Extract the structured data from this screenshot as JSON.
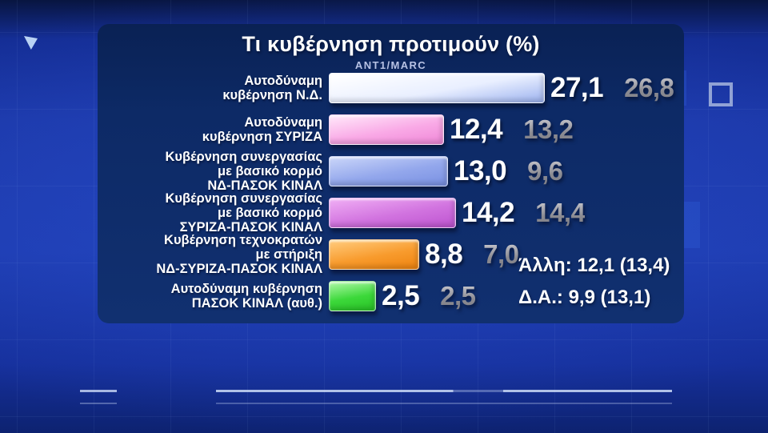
{
  "chart_data": {
    "type": "bar",
    "orientation": "horizontal",
    "title": "Τι κυβέρνηση προτιμούν (%)",
    "source": "ΑΝΤ1/MARC",
    "decimal_style": "comma",
    "xlim": [
      0,
      30
    ],
    "grid": false,
    "legend": "none",
    "categories": [
      "Αυτοδύναμη κυβέρνηση Ν.Δ.",
      "Αυτοδύναμη κυβέρνηση ΣΥΡΙΖΑ",
      "Κυβέρνηση συνεργασίας με βασικό κορμό ΝΔ-ΠΑΣΟΚ ΚΙΝΑΛ",
      "Κυβέρνηση συνεργασίας με βασικό κορμό ΣΥΡΙΖΑ-ΠΑΣΟΚ ΚΙΝΑΛ",
      "Κυβέρνηση τεχνοκρατών με στήριξη ΝΔ-ΣΥΡΙΖΑ-ΠΑΣΟΚ ΚΙΝΑΛ",
      "Αυτοδύναμη κυβέρνηση ΠΑΣΟΚ ΚΙΝΑΛ (αυθ.)"
    ],
    "series": [
      {
        "name": "current",
        "values": [
          27.1,
          12.4,
          13.0,
          14.2,
          8.8,
          2.5
        ]
      },
      {
        "name": "previous",
        "values": [
          26.8,
          13.2,
          9.6,
          14.4,
          7.0,
          2.5
        ]
      }
    ],
    "bars": [
      {
        "label_lines": [
          "Αυτοδύναμη",
          "κυβέρνηση Ν.Δ."
        ],
        "value": 27.1,
        "value_display": "27,1",
        "previous_display": "26,8",
        "colors": [
          "#ffffff",
          "#e9efff",
          "#9cb2ef"
        ]
      },
      {
        "label_lines": [
          "Αυτοδύναμη",
          "κυβέρνηση ΣΥΡΙΖΑ"
        ],
        "value": 12.4,
        "value_display": "12,4",
        "previous_display": "13,2",
        "colors": [
          "#ffe4f9",
          "#f9a9e6",
          "#ef87d7"
        ]
      },
      {
        "label_lines": [
          "Κυβέρνηση συνεργασίας",
          "με βασικό κορμό",
          "ΝΔ-ΠΑΣΟΚ ΚΙΝΑΛ"
        ],
        "value": 13.0,
        "value_display": "13,0",
        "previous_display": "9,6",
        "colors": [
          "#c6d2f8",
          "#93a7ec",
          "#7990e2"
        ]
      },
      {
        "label_lines": [
          "Κυβέρνηση συνεργασίας",
          "με βασικό κορμό",
          "ΣΥΡΙΖΑ-ΠΑΣΟΚ ΚΙΝΑΛ"
        ],
        "value": 14.2,
        "value_display": "14,2",
        "previous_display": "14,4",
        "colors": [
          "#eeaaf3",
          "#d173df",
          "#bd53d0"
        ]
      },
      {
        "label_lines": [
          "Κυβέρνηση τεχνοκρατών",
          "με στήριξη",
          "ΝΔ-ΣΥΡΙΖΑ-ΠΑΣΟΚ ΚΙΝΑΛ"
        ],
        "value": 8.8,
        "value_display": "8,8",
        "previous_display": "7,0",
        "colors": [
          "#ffc877",
          "#f89b2d",
          "#ee830f"
        ]
      },
      {
        "label_lines": [
          "Αυτοδύναμη κυβέρνηση",
          "ΠΑΣΟΚ ΚΙΝΑΛ (αυθ.)"
        ],
        "value": 2.5,
        "value_display": "2,5",
        "previous_display": "2,5",
        "colors": [
          "#a5f69e",
          "#3cd83a",
          "#28c226"
        ]
      }
    ],
    "annotations": {
      "other": "Άλλη: 12,1 (13,4)",
      "undecided": "Δ.Α.: 9,9 (13,1)"
    }
  },
  "colors": {
    "background": "#1d3aac",
    "panel": "#0d2a66",
    "title": "#ffffff",
    "source": "#b7c2e4",
    "value_current": "#ffffff",
    "value_previous": "#97979c"
  }
}
